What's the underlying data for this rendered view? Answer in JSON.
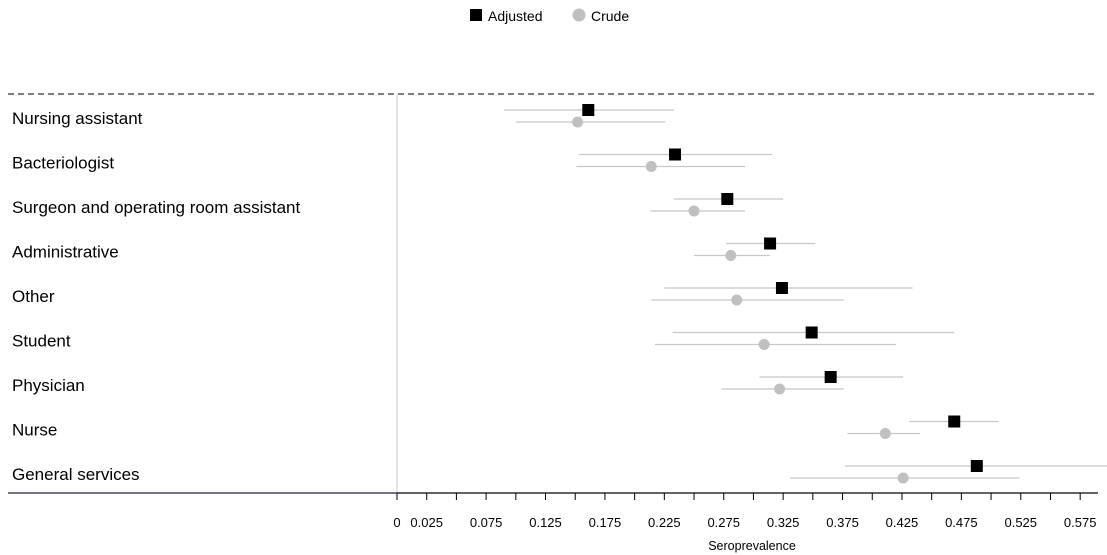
{
  "chart_data": {
    "type": "scatter",
    "subtype": "forest-plot",
    "title": "",
    "xlabel": "Seroprevalence",
    "ylabel": "",
    "xlim": [
      0,
      0.59
    ],
    "x_ticks": [
      "0",
      "0.025",
      "0.075",
      "0.125",
      "0.175",
      "0.225",
      "0.275",
      "0.325",
      "0.375",
      "0.425",
      "0.475",
      "0.525",
      "0.575"
    ],
    "x_tick_values": [
      0,
      0.025,
      0.075,
      0.125,
      0.175,
      0.225,
      0.275,
      0.325,
      0.375,
      0.425,
      0.475,
      0.525,
      0.575
    ],
    "grid": false,
    "legend_position": "top-center",
    "categories": [
      "Nursing assistant",
      "Bacteriologist",
      "Surgeon and operating room assistant",
      "Administrative",
      "Other",
      "Student",
      "Physician",
      "Nurse",
      "General services"
    ],
    "series": [
      {
        "name": "Adjusted",
        "marker": "square",
        "color": "#000000",
        "values": [
          0.161,
          0.234,
          0.278,
          0.314,
          0.324,
          0.349,
          0.365,
          0.469,
          0.488
        ],
        "lower": [
          0.09,
          0.153,
          0.233,
          0.277,
          0.225,
          0.232,
          0.305,
          0.431,
          0.377
        ],
        "upper": [
          0.233,
          0.316,
          0.325,
          0.352,
          0.434,
          0.469,
          0.426,
          0.506,
          0.6
        ]
      },
      {
        "name": "Crude",
        "marker": "circle",
        "color": "#c0c0c0",
        "values": [
          0.152,
          0.214,
          0.25,
          0.281,
          0.286,
          0.309,
          0.322,
          0.411,
          0.426
        ],
        "lower": [
          0.1,
          0.151,
          0.213,
          0.25,
          0.214,
          0.217,
          0.273,
          0.379,
          0.331
        ],
        "upper": [
          0.226,
          0.293,
          0.293,
          0.314,
          0.376,
          0.42,
          0.376,
          0.44,
          0.524
        ]
      }
    ]
  },
  "colors": {
    "adjusted": "#000000",
    "crude": "#c0c0c0",
    "ci_line": "#c8c8c8",
    "axis_line": "#1f1f5c",
    "reference_line": "#c8c8c8"
  }
}
